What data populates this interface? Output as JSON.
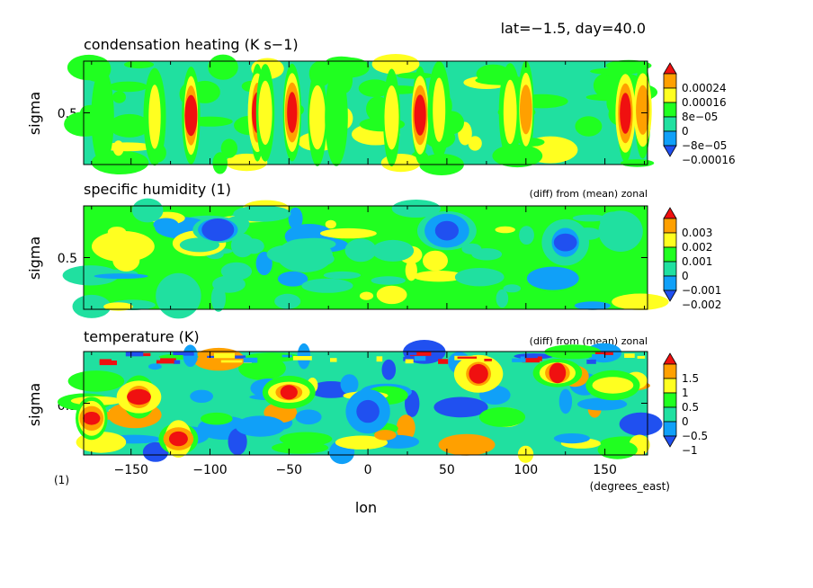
{
  "header": {
    "info": "lat=−1.5, day=40.0"
  },
  "colors": {
    "dark_blue": "#2050f0",
    "light_blue": "#10a0f8",
    "teal": "#20e0a0",
    "green": "#20ff20",
    "yellow": "#ffff20",
    "orange": "#ffa000",
    "red": "#f01010"
  },
  "chart_data": [
    {
      "type": "heatmap",
      "title": "condensation heating (K s−1)",
      "subtitle": "",
      "ylabel": "sigma",
      "ytick_labels": [
        "0.5"
      ],
      "xlim": [
        -180,
        177
      ],
      "ylim": [
        0.0,
        1.0
      ],
      "background_level": "teal",
      "legend": {
        "labels": [
          "0.00024",
          "0.00016",
          "8e−05",
          "0",
          "−8e−05",
          "−0.00016"
        ],
        "bands": [
          "dark_blue",
          "light_blue",
          "teal",
          "green",
          "yellow",
          "orange",
          "red"
        ]
      },
      "features": [
        {
          "lon": -168,
          "band": "green"
        },
        {
          "lon": -135,
          "band": "yellow"
        },
        {
          "lon": -112,
          "band": "red"
        },
        {
          "lon": -70,
          "band": "red"
        },
        {
          "lon": -65,
          "band": "yellow"
        },
        {
          "lon": -48,
          "band": "red"
        },
        {
          "lon": -32,
          "band": "yellow"
        },
        {
          "lon": -20,
          "band": "green"
        },
        {
          "lon": 15,
          "band": "yellow"
        },
        {
          "lon": 33,
          "band": "red"
        },
        {
          "lon": 45,
          "band": "yellow"
        },
        {
          "lon": 90,
          "band": "yellow"
        },
        {
          "lon": 100,
          "band": "orange"
        },
        {
          "lon": 163,
          "band": "red"
        },
        {
          "lon": 174,
          "band": "orange"
        }
      ]
    },
    {
      "type": "heatmap",
      "title": "specific humidity (1)",
      "subtitle": "(diff) from (mean) zonal",
      "ylabel": "sigma",
      "ytick_labels": [
        "0.5"
      ],
      "xlim": [
        -180,
        177
      ],
      "ylim": [
        0.0,
        1.0
      ],
      "background_level": "green",
      "legend": {
        "labels": [
          "0.003",
          "0.002",
          "0.001",
          "0",
          "−0.001",
          "−0.002"
        ],
        "bands": [
          "dark_blue",
          "light_blue",
          "teal",
          "green",
          "yellow",
          "orange",
          "red"
        ]
      },
      "features": [
        {
          "lon": -155,
          "band": "yellow"
        },
        {
          "lon": -120,
          "band": "teal"
        },
        {
          "lon": -95,
          "band": "dark_blue"
        },
        {
          "lon": -40,
          "band": "teal"
        },
        {
          "lon": 50,
          "band": "dark_blue"
        },
        {
          "lon": 125,
          "band": "dark_blue"
        },
        {
          "lon": 160,
          "band": "teal"
        }
      ]
    },
    {
      "type": "heatmap",
      "title": "temperature (K)",
      "subtitle": "(diff) from (mean) zonal",
      "ylabel": "sigma",
      "ytick_labels": [
        "0.5"
      ],
      "xlim": [
        -180,
        177
      ],
      "ylim": [
        0.0,
        1.0
      ],
      "background_level": "teal",
      "legend": {
        "labels": [
          "1.5",
          "1",
          "0.5",
          "0",
          "−0.5",
          "−1"
        ],
        "bands": [
          "dark_blue",
          "light_blue",
          "teal",
          "green",
          "yellow",
          "orange",
          "red"
        ]
      },
      "features": [
        {
          "lon": -175,
          "band": "red"
        },
        {
          "lon": -145,
          "band": "red"
        },
        {
          "lon": -120,
          "band": "red"
        },
        {
          "lon": -50,
          "band": "red"
        },
        {
          "lon": 0,
          "band": "dark_blue"
        },
        {
          "lon": 70,
          "band": "red"
        },
        {
          "lon": 120,
          "band": "red"
        },
        {
          "lon": 155,
          "band": "yellow"
        }
      ],
      "xaxis": {
        "label": "lon",
        "unit": "(degrees_east)",
        "ticks": [
          -150,
          -100,
          -50,
          0,
          50,
          100,
          150
        ],
        "tick_labels": [
          "−150",
          "−100",
          "−50",
          "0",
          "50",
          "100",
          "150"
        ],
        "footnote": "(1)"
      }
    }
  ]
}
